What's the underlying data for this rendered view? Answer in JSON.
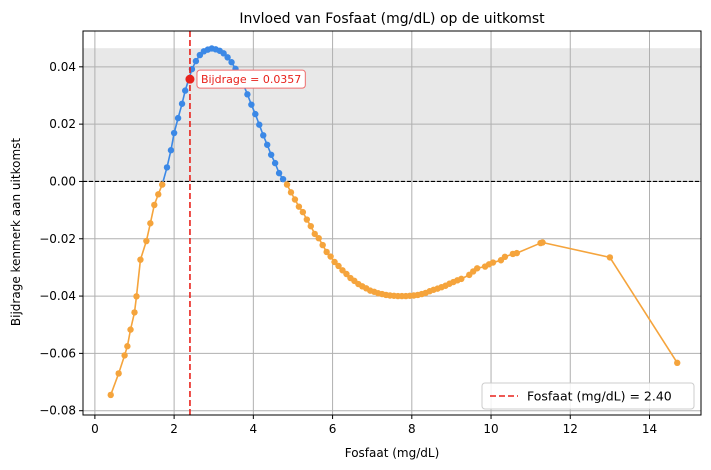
{
  "chart_data": {
    "type": "line",
    "title": "Invloed van Fosfaat (mg/dL) op de uitkomst",
    "xlabel": "Fosfaat (mg/dL)",
    "ylabel": "Bijdrage kenmerk aan uitkomst",
    "xlim": [
      -0.3,
      15.3
    ],
    "ylim": [
      -0.0815,
      0.0525
    ],
    "xticks": [
      0,
      2,
      4,
      6,
      8,
      10,
      12,
      14
    ],
    "xtick_labels": [
      "0",
      "2",
      "4",
      "6",
      "8",
      "10",
      "12",
      "14"
    ],
    "yticks": [
      -0.08,
      -0.06,
      -0.04,
      -0.02,
      0.0,
      0.02,
      0.04
    ],
    "ytick_labels": [
      "−0.08",
      "−0.06",
      "−0.04",
      "−0.02",
      "0.00",
      "0.02",
      "0.04"
    ],
    "grid": true,
    "shaded_band": [
      0.0,
      0.0465
    ],
    "zero_line": 0.0,
    "vertical_line": {
      "x": 2.4,
      "legend_label": "Fosfaat (mg/dL) = 2.40"
    },
    "annotation": {
      "x": 2.4,
      "y": 0.0357,
      "text": "Bijdrage = 0.0357"
    },
    "legend_position": "lower-right",
    "colors": {
      "positive": "#3b88e6",
      "negative": "#f5a43c",
      "marker_line": "#e8221c",
      "band": "#e8e8e8",
      "grid": "#b0b0b0"
    },
    "series": [
      {
        "x": [
          0.4,
          0.6,
          0.75,
          0.82,
          0.9,
          1.0,
          1.05,
          1.15,
          1.3,
          1.4,
          1.5,
          1.6,
          1.7,
          1.82,
          1.92,
          2.0,
          2.1,
          2.2,
          2.28,
          2.37,
          2.45,
          2.55,
          2.65,
          2.75,
          2.85,
          2.95,
          3.05,
          3.15,
          3.25,
          3.35,
          3.45,
          3.55,
          3.65,
          3.75,
          3.85,
          3.95,
          4.05,
          4.15,
          4.25,
          4.35,
          4.45,
          4.55,
          4.65,
          4.75,
          4.85,
          4.95,
          5.05,
          5.15,
          5.25,
          5.35,
          5.45,
          5.55,
          5.65,
          5.75,
          5.85,
          5.95,
          6.05,
          6.15,
          6.25,
          6.35,
          6.45,
          6.55,
          6.65,
          6.75,
          6.85,
          6.95,
          7.05,
          7.15,
          7.25,
          7.35,
          7.45,
          7.55,
          7.65,
          7.75,
          7.85,
          7.95,
          8.05,
          8.15,
          8.25,
          8.35,
          8.45,
          8.55,
          8.65,
          8.75,
          8.85,
          8.95,
          9.05,
          9.15,
          9.25,
          9.45,
          9.55,
          9.65,
          9.85,
          9.95,
          10.05,
          10.25,
          10.35,
          10.55,
          10.65,
          11.25,
          11.3,
          13.0,
          14.7
        ],
        "y": [
          -0.0745,
          -0.067,
          -0.0607,
          -0.0575,
          -0.0517,
          -0.0457,
          -0.0401,
          -0.0273,
          -0.0208,
          -0.0146,
          -0.0082,
          -0.0045,
          -0.0011,
          0.0049,
          0.0109,
          0.0169,
          0.0221,
          0.0271,
          0.0317,
          0.0357,
          0.0392,
          0.042,
          0.0441,
          0.0454,
          0.046,
          0.0464,
          0.0461,
          0.0456,
          0.0447,
          0.0433,
          0.0416,
          0.0393,
          0.0365,
          0.0338,
          0.0304,
          0.0268,
          0.0235,
          0.0198,
          0.0161,
          0.0128,
          0.0093,
          0.0064,
          0.0029,
          0.0008,
          -0.0011,
          -0.0038,
          -0.0063,
          -0.0088,
          -0.0107,
          -0.0133,
          -0.0156,
          -0.0183,
          -0.0198,
          -0.0222,
          -0.0246,
          -0.0262,
          -0.0281,
          -0.0295,
          -0.031,
          -0.0323,
          -0.0337,
          -0.0347,
          -0.0358,
          -0.0366,
          -0.0373,
          -0.0381,
          -0.0385,
          -0.039,
          -0.0393,
          -0.0396,
          -0.0398,
          -0.0399,
          -0.04,
          -0.04,
          -0.04,
          -0.0399,
          -0.0398,
          -0.0396,
          -0.0393,
          -0.0389,
          -0.0383,
          -0.0378,
          -0.0374,
          -0.0369,
          -0.0364,
          -0.0357,
          -0.0351,
          -0.0345,
          -0.034,
          -0.0326,
          -0.0314,
          -0.0303,
          -0.0297,
          -0.0289,
          -0.0283,
          -0.0275,
          -0.0263,
          -0.0253,
          -0.025,
          -0.0215,
          -0.0213,
          -0.0265,
          -0.0633
        ]
      }
    ]
  }
}
